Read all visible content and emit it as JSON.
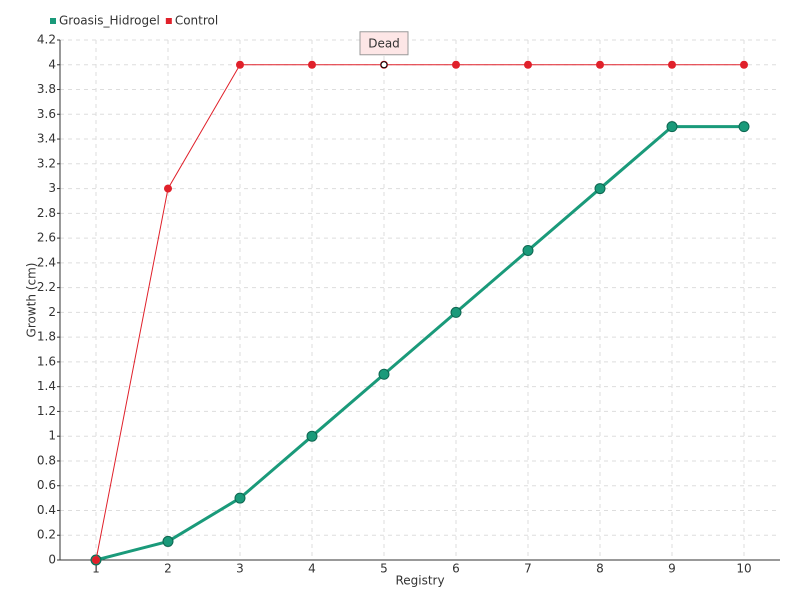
{
  "chart_data": {
    "type": "line",
    "x_label": "Registry",
    "y_label": "Growth (cm)",
    "categories": [
      "1",
      "2",
      "3",
      "4",
      "5",
      "6",
      "7",
      "8",
      "9",
      "10"
    ],
    "series": [
      {
        "name": "Groasis_Hidrogel",
        "color": "#1a9a7a",
        "values": [
          0,
          0.15,
          0.5,
          1,
          1.5,
          2,
          2.5,
          3,
          3.5,
          3.5
        ]
      },
      {
        "name": "Control",
        "color": "#e0202a",
        "values": [
          0,
          3,
          4,
          4,
          4,
          4,
          4,
          4,
          4,
          4
        ]
      }
    ],
    "annotation": {
      "text": "Dead",
      "series": 1,
      "index": 4
    },
    "ylim": [
      0,
      4.2
    ],
    "yticks": [
      0,
      0.2,
      0.4,
      0.6,
      0.8,
      1,
      1.2,
      1.4,
      1.6,
      1.8,
      2,
      2.2,
      2.4,
      2.6,
      2.8,
      3,
      3.2,
      3.4,
      3.6,
      3.8,
      4,
      4.2
    ],
    "grid": true,
    "legend": "top-left"
  }
}
